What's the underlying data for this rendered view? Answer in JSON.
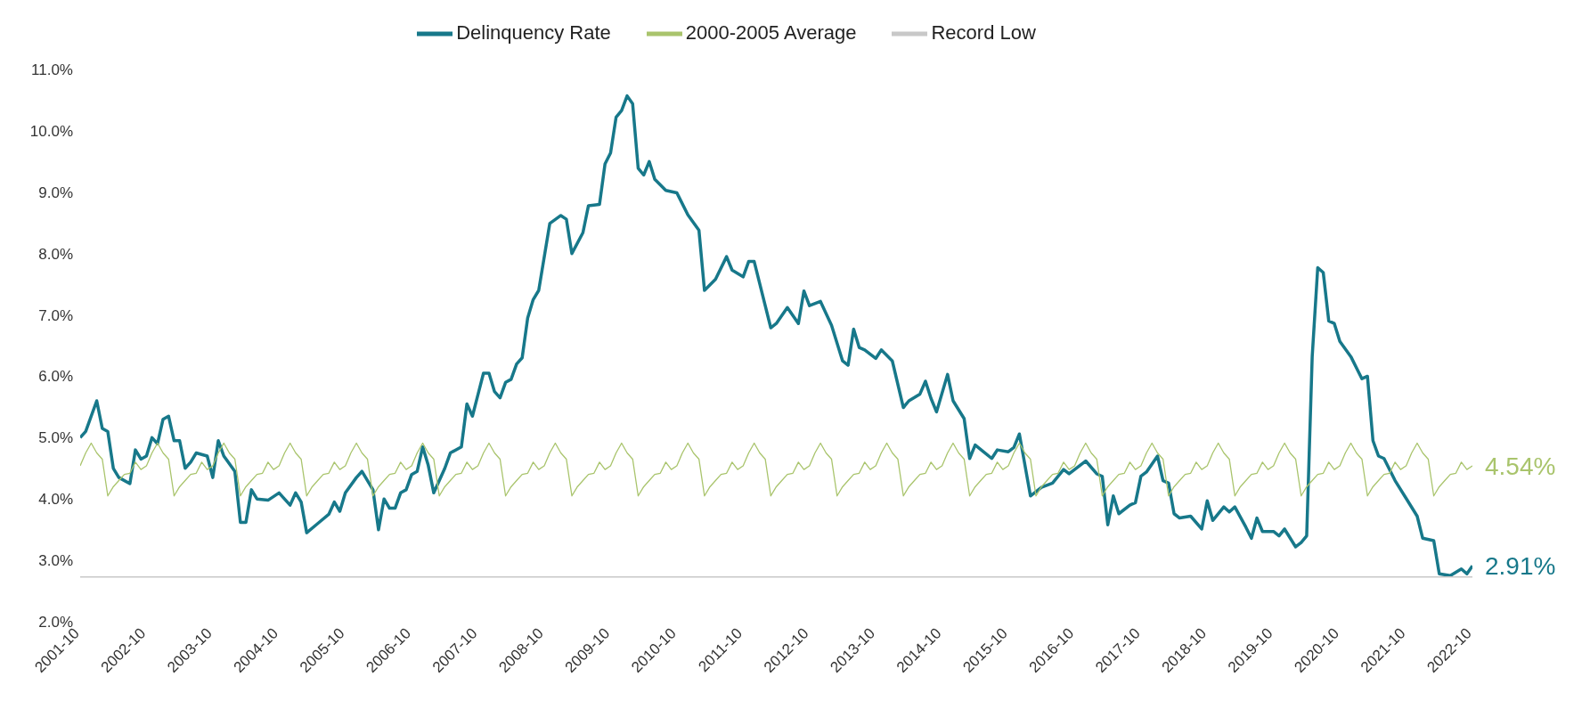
{
  "chart_data": {
    "type": "line",
    "legend": "top",
    "marker": "none",
    "x": [
      "2001-10",
      "2001-11",
      "2001-12",
      "2002-01",
      "2002-02",
      "2002-03",
      "2002-04",
      "2002-05",
      "2002-06",
      "2002-07",
      "2002-08",
      "2002-09",
      "2002-10",
      "2002-11",
      "2002-12",
      "2003-01",
      "2003-02",
      "2003-03",
      "2003-04",
      "2003-05",
      "2003-06",
      "2003-07",
      "2003-08",
      "2003-09",
      "2003-10",
      "2003-11",
      "2003-12",
      "2004-01",
      "2004-02",
      "2004-03",
      "2004-04",
      "2004-05",
      "2004-06",
      "2004-07",
      "2004-08",
      "2004-09",
      "2004-10",
      "2004-11",
      "2004-12",
      "2005-01",
      "2005-02",
      "2005-03",
      "2005-04",
      "2005-05",
      "2005-06",
      "2005-07",
      "2005-08",
      "2005-09",
      "2005-10",
      "2005-11",
      "2005-12",
      "2006-01",
      "2006-02",
      "2006-03",
      "2006-04",
      "2006-05",
      "2006-06",
      "2006-07",
      "2006-08",
      "2006-09",
      "2006-10",
      "2006-11",
      "2006-12",
      "2007-01",
      "2007-02",
      "2007-03",
      "2007-04",
      "2007-05",
      "2007-06",
      "2007-07",
      "2007-08",
      "2007-09",
      "2007-10",
      "2007-11",
      "2007-12",
      "2008-01",
      "2008-02",
      "2008-03",
      "2008-04",
      "2008-05",
      "2008-06",
      "2008-07",
      "2008-08",
      "2008-09",
      "2008-10",
      "2008-11",
      "2008-12",
      "2009-01",
      "2009-02",
      "2009-03",
      "2009-04",
      "2009-05",
      "2009-06",
      "2009-07",
      "2009-08",
      "2009-09",
      "2009-10",
      "2009-11",
      "2009-12",
      "2010-01",
      "2010-02",
      "2010-03",
      "2010-04",
      "2010-05",
      "2010-06",
      "2010-07",
      "2010-08",
      "2010-09",
      "2010-10",
      "2010-11",
      "2010-12",
      "2011-01",
      "2011-02",
      "2011-03",
      "2011-04",
      "2011-05",
      "2011-06",
      "2011-07",
      "2011-08",
      "2011-09",
      "2011-10",
      "2011-11",
      "2011-12",
      "2012-01",
      "2012-02",
      "2012-03",
      "2012-04",
      "2012-05",
      "2012-06",
      "2012-07",
      "2012-08",
      "2012-09",
      "2012-10",
      "2012-11",
      "2012-12",
      "2013-01",
      "2013-02",
      "2013-03",
      "2013-04",
      "2013-05",
      "2013-06",
      "2013-07",
      "2013-08",
      "2013-09",
      "2013-10",
      "2013-11",
      "2013-12",
      "2014-01",
      "2014-02",
      "2014-03",
      "2014-04",
      "2014-05",
      "2014-06",
      "2014-07",
      "2014-08",
      "2014-09",
      "2014-10",
      "2014-11",
      "2014-12",
      "2015-01",
      "2015-02",
      "2015-03",
      "2015-04",
      "2015-05",
      "2015-06",
      "2015-07",
      "2015-08",
      "2015-09",
      "2015-10",
      "2015-11",
      "2015-12",
      "2016-01",
      "2016-02",
      "2016-03",
      "2016-04",
      "2016-05",
      "2016-06",
      "2016-07",
      "2016-08",
      "2016-09",
      "2016-10",
      "2016-11",
      "2016-12",
      "2017-01",
      "2017-02",
      "2017-03",
      "2017-04",
      "2017-05",
      "2017-06",
      "2017-07",
      "2017-08",
      "2017-09",
      "2017-10",
      "2017-11",
      "2017-12",
      "2018-01",
      "2018-02",
      "2018-03",
      "2018-04",
      "2018-05",
      "2018-06",
      "2018-07",
      "2018-08",
      "2018-09",
      "2018-10",
      "2018-11",
      "2018-12",
      "2019-01",
      "2019-02",
      "2019-03",
      "2019-04",
      "2019-05",
      "2019-06",
      "2019-07",
      "2019-08",
      "2019-09",
      "2019-10",
      "2019-11",
      "2019-12",
      "2020-01",
      "2020-02",
      "2020-03",
      "2020-04",
      "2020-05",
      "2020-06",
      "2020-07",
      "2020-08",
      "2020-09",
      "2020-10",
      "2020-11",
      "2020-12",
      "2021-01",
      "2021-02",
      "2021-03",
      "2021-04",
      "2021-05",
      "2021-06",
      "2021-07",
      "2021-08",
      "2021-09",
      "2021-10",
      "2021-11",
      "2021-12",
      "2022-01",
      "2022-02",
      "2022-03",
      "2022-04",
      "2022-05",
      "2022-06",
      "2022-07",
      "2022-08",
      "2022-09",
      "2022-10"
    ],
    "xlim": [
      "2001-10",
      "2022-10"
    ],
    "xticks": [
      "2001-10",
      "2002-10",
      "2003-10",
      "2004-10",
      "2005-10",
      "2006-10",
      "2007-10",
      "2008-10",
      "2009-10",
      "2010-10",
      "2011-10",
      "2012-10",
      "2013-10",
      "2014-10",
      "2015-10",
      "2016-10",
      "2017-10",
      "2018-10",
      "2019-10",
      "2020-10",
      "2021-10",
      "2022-10"
    ],
    "ylim": [
      2,
      11
    ],
    "yticks": [
      {
        "value": 2,
        "label": "2.0%"
      },
      {
        "value": 3,
        "label": "3.0%"
      },
      {
        "value": 4,
        "label": "4.0%"
      },
      {
        "value": 5,
        "label": "5.0%"
      },
      {
        "value": 6,
        "label": "6.0%"
      },
      {
        "value": 7,
        "label": "7.0%"
      },
      {
        "value": 8,
        "label": "8.0%"
      },
      {
        "value": 9,
        "label": "9.0%"
      },
      {
        "value": 10,
        "label": "10.0%"
      },
      {
        "value": 11,
        "label": "11.0%"
      }
    ],
    "series": [
      {
        "name": "Delinquency Rate",
        "color": "#17788a",
        "x": [
          "2001-10",
          "2001-11",
          "2002-01",
          "2002-02",
          "2002-03",
          "2002-04",
          "2002-05",
          "2002-07",
          "2002-08",
          "2002-09",
          "2002-10",
          "2002-11",
          "2002-12",
          "2003-01",
          "2003-02",
          "2003-03",
          "2003-04",
          "2003-05",
          "2003-06",
          "2003-07",
          "2003-09",
          "2003-10",
          "2003-11",
          "2003-12",
          "2004-02",
          "2004-03",
          "2004-04",
          "2004-05",
          "2004-06",
          "2004-08",
          "2004-10",
          "2004-12",
          "2005-01",
          "2005-02",
          "2005-03",
          "2005-05",
          "2005-07",
          "2005-08",
          "2005-09",
          "2005-10",
          "2005-12",
          "2006-01",
          "2006-03",
          "2006-04",
          "2006-05",
          "2006-06",
          "2006-07",
          "2006-08",
          "2006-09",
          "2006-10",
          "2006-11",
          "2006-12",
          "2007-01",
          "2007-02",
          "2007-04",
          "2007-05",
          "2007-07",
          "2007-08",
          "2007-09",
          "2007-10",
          "2007-11",
          "2007-12",
          "2008-01",
          "2008-02",
          "2008-03",
          "2008-04",
          "2008-05",
          "2008-06",
          "2008-07",
          "2008-08",
          "2008-09",
          "2008-11",
          "2009-01",
          "2009-02",
          "2009-03",
          "2009-05",
          "2009-06",
          "2009-08",
          "2009-09",
          "2009-10",
          "2009-11",
          "2009-12",
          "2010-01",
          "2010-02",
          "2010-03",
          "2010-04",
          "2010-05",
          "2010-06",
          "2010-08",
          "2010-10",
          "2010-12",
          "2011-02",
          "2011-03",
          "2011-05",
          "2011-07",
          "2011-08",
          "2011-10",
          "2011-11",
          "2011-12",
          "2012-03",
          "2012-04",
          "2012-06",
          "2012-08",
          "2012-09",
          "2012-10",
          "2012-12",
          "2013-02",
          "2013-04",
          "2013-05",
          "2013-06",
          "2013-07",
          "2013-08",
          "2013-10",
          "2013-11",
          "2014-01",
          "2014-03",
          "2014-04",
          "2014-06",
          "2014-07",
          "2014-08",
          "2014-09",
          "2014-11",
          "2014-12",
          "2015-02",
          "2015-03",
          "2015-04",
          "2015-07",
          "2015-08",
          "2015-10",
          "2015-11",
          "2015-12",
          "2016-02",
          "2016-04",
          "2016-06",
          "2016-08",
          "2016-09",
          "2016-12",
          "2017-02",
          "2017-03",
          "2017-04",
          "2017-05",
          "2017-06",
          "2017-08",
          "2017-09",
          "2017-10",
          "2017-11",
          "2018-01",
          "2018-02",
          "2018-03",
          "2018-04",
          "2018-05",
          "2018-07",
          "2018-09",
          "2018-10",
          "2018-11",
          "2019-01",
          "2019-02",
          "2019-03",
          "2019-05",
          "2019-06",
          "2019-07",
          "2019-08",
          "2019-10",
          "2019-11",
          "2019-12",
          "2020-02",
          "2020-03",
          "2020-04",
          "2020-05",
          "2020-06",
          "2020-07",
          "2020-08",
          "2020-09",
          "2020-10",
          "2020-12",
          "2021-02",
          "2021-03",
          "2021-04",
          "2021-05",
          "2021-06",
          "2021-08",
          "2021-10",
          "2021-12",
          "2022-01",
          "2022-03",
          "2022-04",
          "2022-06",
          "2022-08",
          "2022-09",
          "2022-10"
        ],
        "values": [
          5.0,
          5.1,
          5.6,
          5.15,
          5.1,
          4.5,
          4.35,
          4.25,
          4.8,
          4.65,
          4.7,
          5.0,
          4.9,
          5.3,
          5.35,
          4.95,
          4.95,
          4.5,
          4.6,
          4.75,
          4.7,
          4.35,
          4.95,
          4.7,
          4.45,
          3.62,
          3.62,
          4.15,
          4.0,
          3.98,
          4.1,
          3.9,
          4.1,
          3.95,
          3.45,
          3.6,
          3.75,
          3.95,
          3.8,
          4.1,
          4.35,
          4.45,
          4.15,
          3.5,
          4.0,
          3.85,
          3.85,
          4.1,
          4.15,
          4.4,
          4.45,
          4.85,
          4.55,
          4.1,
          4.5,
          4.75,
          4.85,
          5.55,
          5.35,
          5.7,
          6.05,
          6.05,
          5.75,
          5.65,
          5.9,
          5.95,
          6.2,
          6.3,
          6.95,
          7.25,
          7.4,
          8.49,
          8.62,
          8.56,
          8.0,
          8.34,
          8.78,
          8.8,
          9.46,
          9.64,
          10.22,
          10.33,
          10.57,
          10.44,
          9.39,
          9.28,
          9.5,
          9.21,
          9.03,
          8.99,
          8.63,
          8.38,
          7.4,
          7.58,
          7.95,
          7.73,
          7.62,
          7.87,
          7.87,
          6.79,
          6.86,
          7.12,
          6.86,
          7.39,
          7.15,
          7.22,
          6.83,
          6.25,
          6.18,
          6.77,
          6.47,
          6.43,
          6.29,
          6.43,
          6.25,
          5.49,
          5.6,
          5.71,
          5.92,
          5.64,
          5.42,
          6.03,
          5.6,
          5.31,
          4.66,
          4.88,
          4.66,
          4.8,
          4.77,
          4.84,
          5.06,
          4.05,
          4.19,
          4.26,
          4.48,
          4.41,
          4.62,
          4.41,
          4.37,
          3.58,
          4.05,
          3.76,
          3.9,
          3.94,
          4.37,
          4.44,
          4.7,
          4.3,
          4.26,
          3.76,
          3.69,
          3.72,
          3.51,
          3.97,
          3.65,
          3.87,
          3.79,
          3.87,
          3.54,
          3.36,
          3.69,
          3.47,
          3.47,
          3.4,
          3.51,
          3.22,
          3.29,
          3.4,
          6.32,
          7.77,
          7.69,
          6.9,
          6.86,
          6.57,
          6.32,
          5.96,
          6.0,
          4.95,
          4.7,
          4.66,
          4.3,
          4.01,
          3.72,
          3.36,
          3.32,
          2.78,
          2.75,
          2.86,
          2.78,
          2.91
        ]
      },
      {
        "name": "2000-2005 Average",
        "color": "#a9c46c",
        "values": [
          4.54,
          4.75,
          4.91,
          4.75,
          4.65,
          4.05,
          4.2,
          4.3,
          4.4,
          4.42,
          4.6,
          4.48,
          4.54,
          4.75,
          4.91,
          4.75,
          4.65,
          4.05,
          4.2,
          4.3,
          4.4,
          4.42,
          4.6,
          4.48,
          4.54,
          4.75,
          4.91,
          4.75,
          4.65,
          4.05,
          4.2,
          4.3,
          4.4,
          4.42,
          4.6,
          4.48,
          4.54,
          4.75,
          4.91,
          4.75,
          4.65,
          4.05,
          4.2,
          4.3,
          4.4,
          4.42,
          4.6,
          4.48,
          4.54,
          4.75,
          4.91,
          4.75,
          4.65,
          4.05,
          4.2,
          4.3,
          4.4,
          4.42,
          4.6,
          4.48,
          4.54,
          4.75,
          4.91,
          4.75,
          4.65,
          4.05,
          4.2,
          4.3,
          4.4,
          4.42,
          4.6,
          4.48,
          4.54,
          4.75,
          4.91,
          4.75,
          4.65,
          4.05,
          4.2,
          4.3,
          4.4,
          4.42,
          4.6,
          4.48,
          4.54,
          4.75,
          4.91,
          4.75,
          4.65,
          4.05,
          4.2,
          4.3,
          4.4,
          4.42,
          4.6,
          4.48,
          4.54,
          4.75,
          4.91,
          4.75,
          4.65,
          4.05,
          4.2,
          4.3,
          4.4,
          4.42,
          4.6,
          4.48,
          4.54,
          4.75,
          4.91,
          4.75,
          4.65,
          4.05,
          4.2,
          4.3,
          4.4,
          4.42,
          4.6,
          4.48,
          4.54,
          4.75,
          4.91,
          4.75,
          4.65,
          4.05,
          4.2,
          4.3,
          4.4,
          4.42,
          4.6,
          4.48,
          4.54,
          4.75,
          4.91,
          4.75,
          4.65,
          4.05,
          4.2,
          4.3,
          4.4,
          4.42,
          4.6,
          4.48,
          4.54,
          4.75,
          4.91,
          4.75,
          4.65,
          4.05,
          4.2,
          4.3,
          4.4,
          4.42,
          4.6,
          4.48,
          4.54,
          4.75,
          4.91,
          4.75,
          4.65,
          4.05,
          4.2,
          4.3,
          4.4,
          4.42,
          4.6,
          4.48,
          4.54,
          4.75,
          4.91,
          4.75,
          4.65,
          4.05,
          4.2,
          4.3,
          4.4,
          4.42,
          4.6,
          4.48,
          4.54,
          4.75,
          4.91,
          4.75,
          4.65,
          4.05,
          4.2,
          4.3,
          4.4,
          4.42,
          4.6,
          4.48,
          4.54,
          4.75,
          4.91,
          4.75,
          4.65,
          4.05,
          4.2,
          4.3,
          4.4,
          4.42,
          4.6,
          4.48,
          4.54,
          4.75,
          4.91,
          4.75,
          4.65,
          4.05,
          4.2,
          4.3,
          4.4,
          4.42,
          4.6,
          4.48,
          4.54,
          4.75,
          4.91,
          4.75,
          4.65,
          4.05,
          4.2,
          4.3,
          4.4,
          4.42,
          4.6,
          4.48,
          4.54,
          4.75,
          4.91,
          4.75,
          4.65,
          4.05,
          4.2,
          4.3,
          4.4,
          4.42,
          4.6,
          4.48,
          4.54,
          4.75,
          4.91,
          4.75,
          4.65,
          4.05,
          4.2,
          4.3,
          4.4,
          4.42,
          4.6,
          4.48,
          4.54
        ]
      },
      {
        "name": "Record Low",
        "color": "#c8c8c8",
        "x": [
          "2001-10",
          "2022-10"
        ],
        "values": [
          2.73,
          2.73
        ]
      }
    ],
    "annotations": [
      {
        "text": "4.54%",
        "x": "2022-10",
        "y": 4.54
      },
      {
        "text": "2.91%",
        "x": "2022-10",
        "y": 2.91
      }
    ]
  }
}
